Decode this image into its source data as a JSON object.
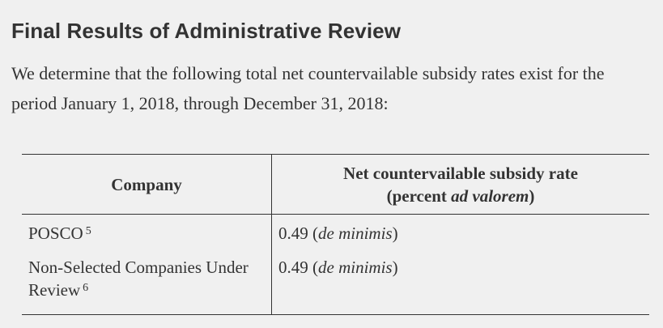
{
  "heading": "Final Results of Administrative Review",
  "intro": "We determine that the following total net countervailable subsidy rates exist for the period January 1, 2018, through December 31, 2018:",
  "table": {
    "headers": {
      "company": "Company",
      "rate_line1": "Net countervailable subsidy rate",
      "rate_line2_pre": "(percent ",
      "rate_line2_em": "ad valorem",
      "rate_line2_post": ")"
    },
    "rows": [
      {
        "company": "POSCO",
        "footnote": "5",
        "rate": "0.49",
        "rate_note": "de minimis"
      },
      {
        "company": "Non-Selected Companies Under Review",
        "footnote": "6",
        "rate": "0.49",
        "rate_note": "de minimis"
      }
    ]
  }
}
